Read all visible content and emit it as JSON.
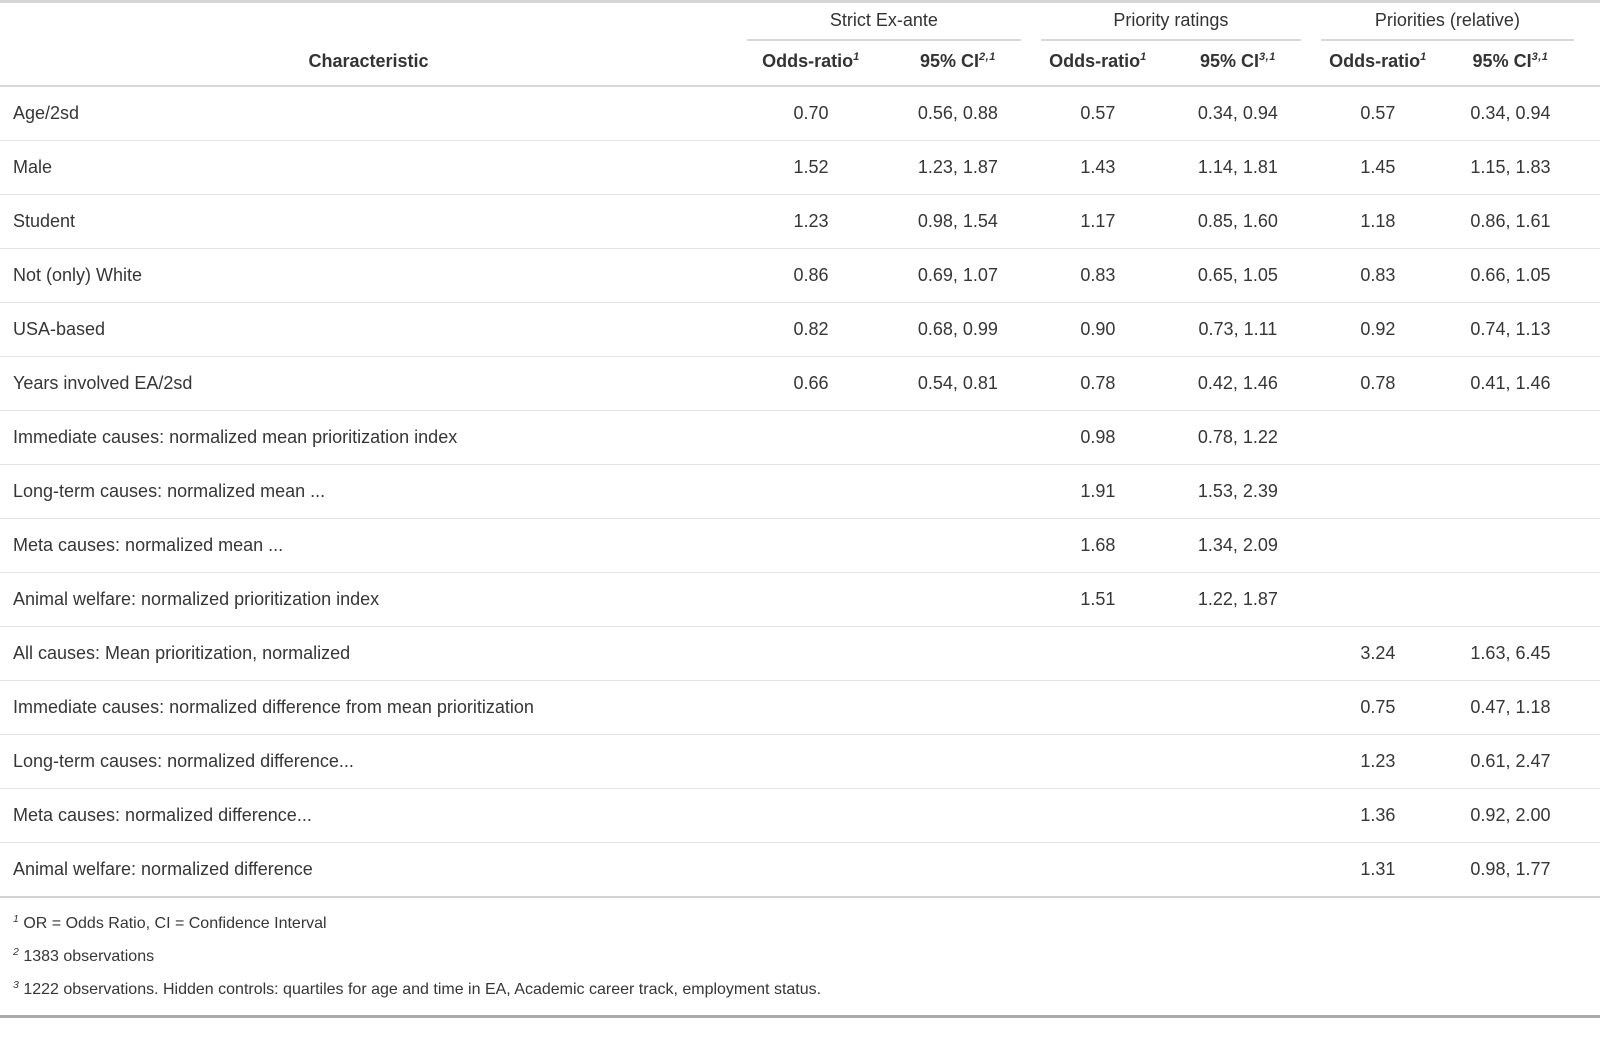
{
  "table": {
    "spanners": [
      {
        "label": "Strict Ex-ante"
      },
      {
        "label": "Priority ratings"
      },
      {
        "label": "Priorities (relative)"
      }
    ],
    "columns": {
      "characteristic": "Characteristic",
      "odds_ratio": "Odds-ratio",
      "odds_ratio_sup": "1",
      "ci": "95% CI",
      "ci_sup_group1": "2,1",
      "ci_sup_group2": "3,1",
      "ci_sup_group3": "3,1"
    },
    "rows": [
      {
        "label": "Age/2sd",
        "or1": "0.70",
        "ci1": "0.56, 0.88",
        "or2": "0.57",
        "ci2": "0.34, 0.94",
        "or3": "0.57",
        "ci3": "0.34, 0.94"
      },
      {
        "label": "Male",
        "or1": "1.52",
        "ci1": "1.23, 1.87",
        "or2": "1.43",
        "ci2": "1.14, 1.81",
        "or3": "1.45",
        "ci3": "1.15, 1.83"
      },
      {
        "label": "Student",
        "or1": "1.23",
        "ci1": "0.98, 1.54",
        "or2": "1.17",
        "ci2": "0.85, 1.60",
        "or3": "1.18",
        "ci3": "0.86, 1.61"
      },
      {
        "label": "Not (only) White",
        "or1": "0.86",
        "ci1": "0.69, 1.07",
        "or2": "0.83",
        "ci2": "0.65, 1.05",
        "or3": "0.83",
        "ci3": "0.66, 1.05"
      },
      {
        "label": "USA-based",
        "or1": "0.82",
        "ci1": "0.68, 0.99",
        "or2": "0.90",
        "ci2": "0.73, 1.11",
        "or3": "0.92",
        "ci3": "0.74, 1.13"
      },
      {
        "label": "Years involved EA/2sd",
        "or1": "0.66",
        "ci1": "0.54, 0.81",
        "or2": "0.78",
        "ci2": "0.42, 1.46",
        "or3": "0.78",
        "ci3": "0.41, 1.46"
      },
      {
        "label": "Immediate causes: normalized mean prioritization index",
        "or1": "",
        "ci1": "",
        "or2": "0.98",
        "ci2": "0.78, 1.22",
        "or3": "",
        "ci3": ""
      },
      {
        "label": "Long-term causes: normalized mean ...",
        "or1": "",
        "ci1": "",
        "or2": "1.91",
        "ci2": "1.53, 2.39",
        "or3": "",
        "ci3": ""
      },
      {
        "label": "Meta causes: normalized mean ...",
        "or1": "",
        "ci1": "",
        "or2": "1.68",
        "ci2": "1.34, 2.09",
        "or3": "",
        "ci3": ""
      },
      {
        "label": "Animal welfare: normalized prioritization index",
        "or1": "",
        "ci1": "",
        "or2": "1.51",
        "ci2": "1.22, 1.87",
        "or3": "",
        "ci3": ""
      },
      {
        "label": "All causes: Mean prioritization, normalized",
        "or1": "",
        "ci1": "",
        "or2": "",
        "ci2": "",
        "or3": "3.24",
        "ci3": "1.63, 6.45"
      },
      {
        "label": "Immediate causes: normalized difference from mean prioritization",
        "or1": "",
        "ci1": "",
        "or2": "",
        "ci2": "",
        "or3": "0.75",
        "ci3": "0.47, 1.18"
      },
      {
        "label": "Long-term causes: normalized difference...",
        "or1": "",
        "ci1": "",
        "or2": "",
        "ci2": "",
        "or3": "1.23",
        "ci3": "0.61, 2.47"
      },
      {
        "label": "Meta causes: normalized difference...",
        "or1": "",
        "ci1": "",
        "or2": "",
        "ci2": "",
        "or3": "1.36",
        "ci3": "0.92, 2.00"
      },
      {
        "label": "Animal welfare: normalized difference",
        "or1": "",
        "ci1": "",
        "or2": "",
        "ci2": "",
        "or3": "1.31",
        "ci3": "0.98, 1.77"
      }
    ],
    "footnotes": [
      {
        "mark": "1",
        "text": "OR = Odds Ratio, CI = Confidence Interval"
      },
      {
        "mark": "2",
        "text": "1383 observations"
      },
      {
        "mark": "3",
        "text": "1222 observations. Hidden controls: quartiles for age and time in EA, Academic career track, employment status."
      }
    ],
    "colors": {
      "text": "#363636",
      "rule_light": "#d8d8d8",
      "row_line": "#e4e4e4",
      "table_top_border": "#d6d6d6",
      "table_bottom_border": "#a9a9a9"
    }
  }
}
